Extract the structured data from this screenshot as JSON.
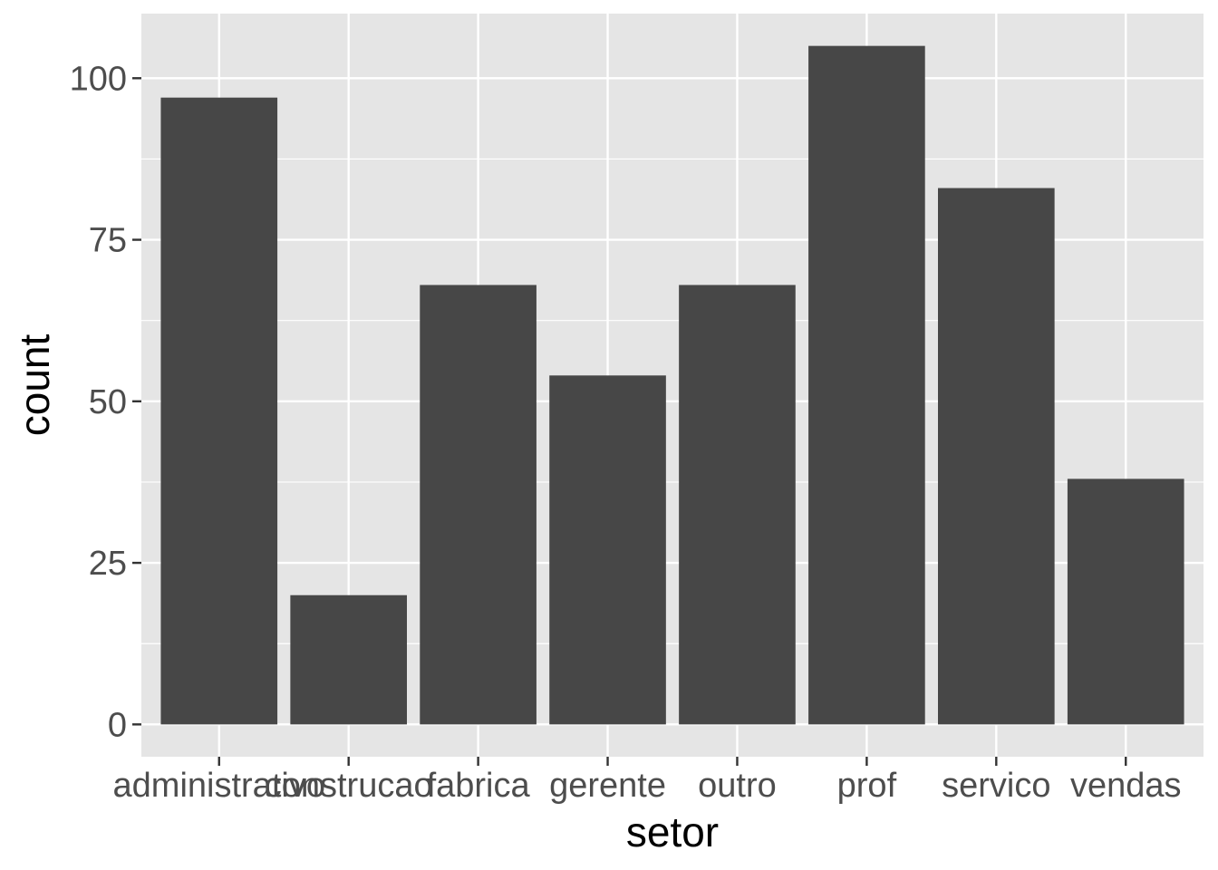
{
  "chart_data": {
    "type": "bar",
    "xlabel": "setor",
    "ylabel": "count",
    "categories": [
      "administrativo",
      "construcao",
      "fabrica",
      "gerente",
      "outro",
      "prof",
      "servico",
      "vendas"
    ],
    "values": [
      97,
      20,
      68,
      54,
      68,
      105,
      83,
      38
    ],
    "ylim": [
      -5,
      110
    ],
    "yticks": [
      0,
      25,
      50,
      75,
      100
    ],
    "y_minor_ticks": [
      12.5,
      37.5,
      62.5,
      87.5
    ],
    "grid": true,
    "colors": {
      "panel_background": "#e5e5e5",
      "grid": "#ffffff",
      "bar": "#474747",
      "tick_text": "#4d4d4d",
      "tick_mark": "#333333",
      "title_text": "#000000"
    }
  }
}
